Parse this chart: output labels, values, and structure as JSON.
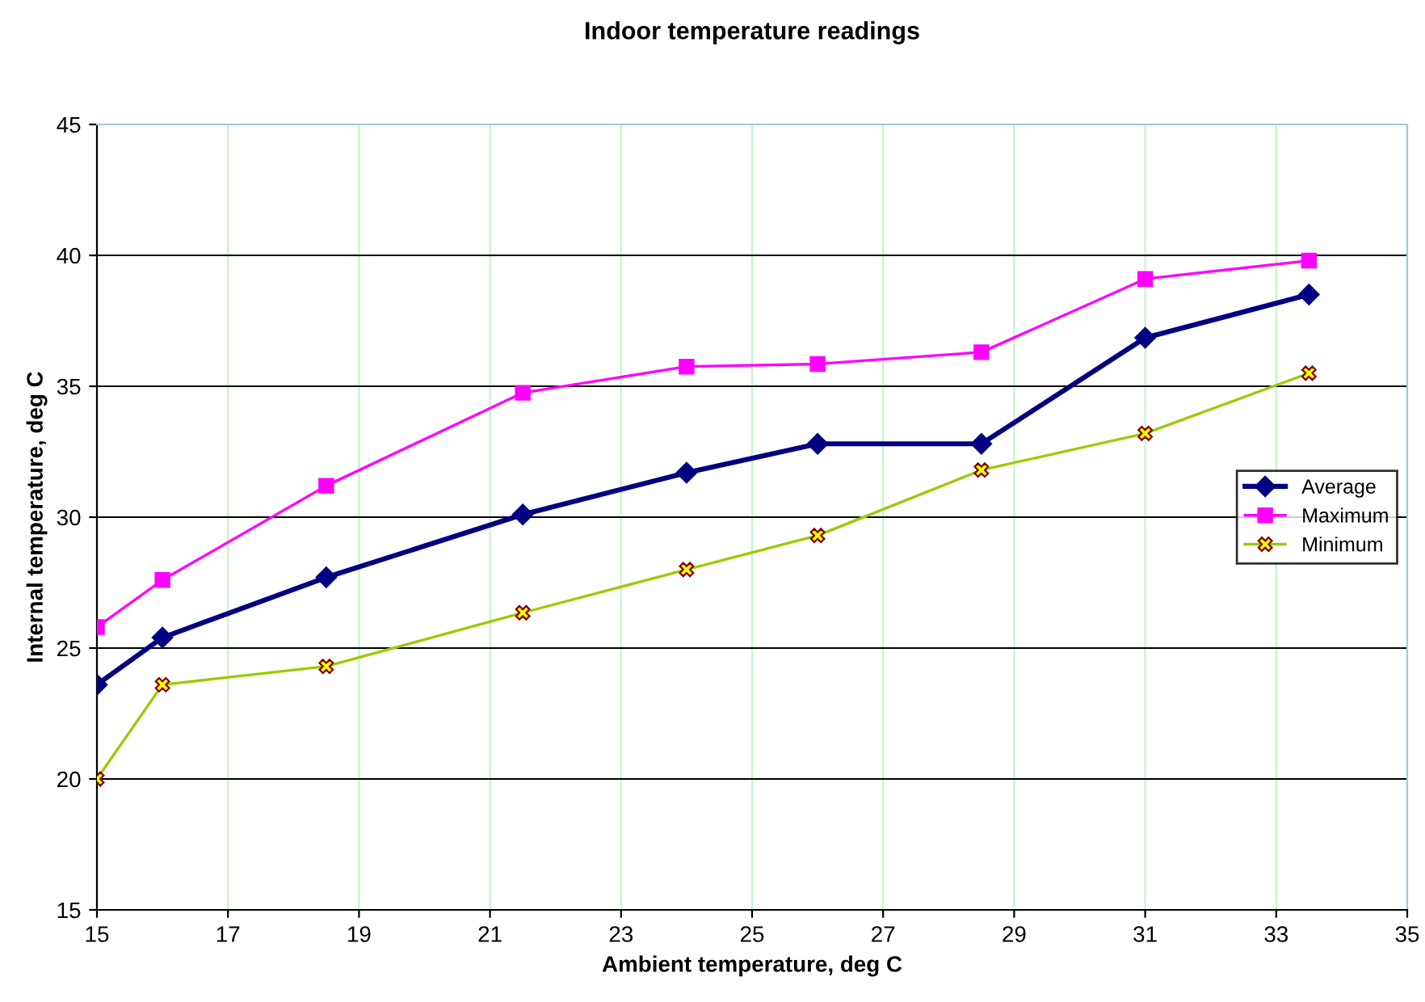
{
  "chart_data": {
    "type": "line",
    "title": "Indoor temperature readings",
    "xlabel": "Ambient temperature, deg C",
    "ylabel": "Internal temperature, deg C",
    "x": [
      15,
      16,
      18.5,
      21.5,
      24,
      26,
      28.5,
      31,
      33.5
    ],
    "series": [
      {
        "name": "Average",
        "color": "#000080",
        "marker": "diamond",
        "values": [
          23.6,
          25.4,
          27.7,
          30.1,
          31.7,
          32.8,
          32.8,
          36.85,
          38.5
        ]
      },
      {
        "name": "Maximum",
        "color": "#ff00ff",
        "marker": "square",
        "values": [
          25.8,
          27.6,
          31.2,
          34.75,
          35.75,
          35.85,
          36.3,
          39.1,
          39.8
        ]
      },
      {
        "name": "Minimum",
        "color": "#99cc00",
        "marker": "cross",
        "values": [
          20.0,
          23.6,
          24.3,
          26.35,
          28.0,
          29.3,
          31.8,
          33.2,
          35.5
        ]
      }
    ],
    "xlim": [
      15,
      35
    ],
    "xticks": [
      15,
      17,
      19,
      21,
      23,
      25,
      27,
      29,
      31,
      33,
      35
    ],
    "ylim": [
      15,
      45
    ],
    "yticks": [
      15,
      20,
      25,
      30,
      35,
      40,
      45
    ],
    "grid": true,
    "legend": "center right",
    "line_style": "solid"
  }
}
